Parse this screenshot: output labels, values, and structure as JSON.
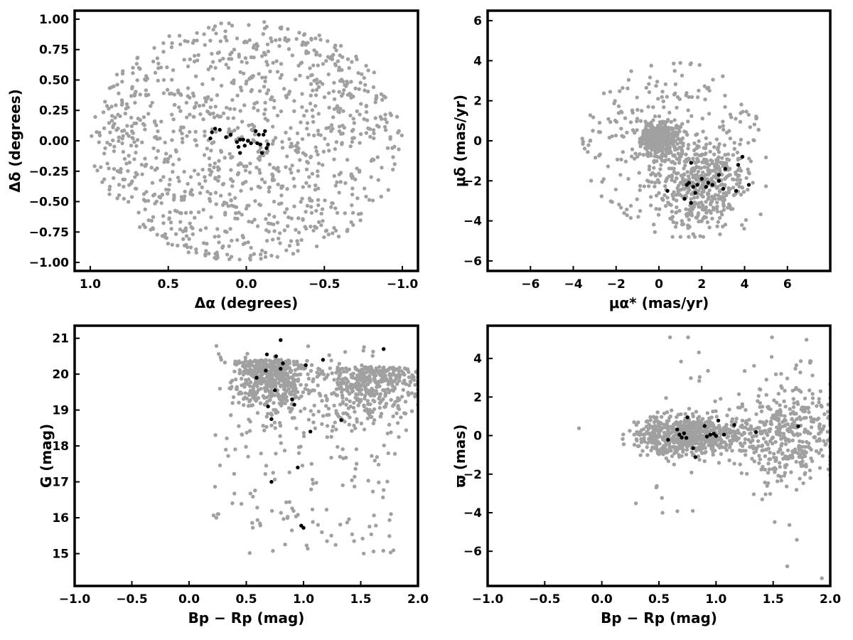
{
  "colors": {
    "field": "#a0a0a0",
    "members": "#000000"
  },
  "chart_data": [
    {
      "type": "scatter",
      "xlabel": "Δα (degrees)",
      "ylabel": "Δδ (degrees)",
      "xlim": [
        1.1,
        -1.1
      ],
      "ylim": [
        -1.07,
        1.07
      ],
      "xticks": [
        1.0,
        0.5,
        0.0,
        -0.5,
        -1.0
      ],
      "yticks": [
        -1.0,
        -0.75,
        -0.5,
        -0.25,
        0.0,
        0.25,
        0.5,
        0.75,
        1.0
      ],
      "xtick_labels": [
        "1.0",
        "0.5",
        "0.0",
        "−0.5",
        "−1.0"
      ],
      "ytick_labels": [
        "−1.00",
        "−0.75",
        "−0.50",
        "−0.25",
        "0.00",
        "0.25",
        "0.50",
        "0.75",
        "1.00"
      ],
      "series": [
        {
          "role": "field",
          "n": 1100,
          "distribution": "uniform-disk",
          "center": [
            0,
            0
          ],
          "radius": [
            1.0,
            0.99
          ]
        },
        {
          "role": "members",
          "points": [
            [
              0.23,
              0.02
            ],
            [
              0.22,
              0.07
            ],
            [
              0.2,
              0.1
            ],
            [
              0.17,
              0.09
            ],
            [
              0.13,
              0.03
            ],
            [
              0.1,
              0.05
            ],
            [
              0.06,
              -0.01
            ],
            [
              0.05,
              -0.05
            ],
            [
              0.04,
              0.01
            ],
            [
              0.02,
              0.01
            ],
            [
              0.01,
              -0.04
            ],
            [
              -0.01,
              0.0
            ],
            [
              -0.03,
              -0.02
            ],
            [
              -0.06,
              0.08
            ],
            [
              -0.08,
              0.05
            ],
            [
              -0.07,
              -0.02
            ],
            [
              -0.09,
              -0.03
            ],
            [
              -0.1,
              -0.1
            ],
            [
              -0.11,
              0.05
            ],
            [
              -0.13,
              -0.06
            ],
            [
              -0.14,
              -0.03
            ],
            [
              -0.12,
              0.08
            ],
            [
              0.04,
              -0.1
            ]
          ]
        }
      ]
    },
    {
      "type": "scatter",
      "xlabel": "μα* (mas/yr)",
      "ylabel": "μδ (mas/yr)",
      "xlim": [
        -8,
        8
      ],
      "ylim": [
        -6.5,
        6.5
      ],
      "xticks": [
        -6,
        -4,
        -2,
        0,
        2,
        4,
        6
      ],
      "yticks": [
        -6,
        -4,
        -2,
        0,
        2,
        4,
        6
      ],
      "xtick_labels": [
        "−6",
        "−4",
        "−2",
        "0",
        "2",
        "4",
        "6"
      ],
      "ytick_labels": [
        "−6",
        "−4",
        "−2",
        "0",
        "2",
        "4",
        "6"
      ],
      "series": [
        {
          "role": "field",
          "n": 1100,
          "distribution": "cluster-plus-halo",
          "center": [
            0,
            0
          ],
          "spread": [
            2.5,
            2.4
          ]
        },
        {
          "role": "members",
          "points": [
            [
              1.5,
              -1.1
            ],
            [
              1.3,
              -2.2
            ],
            [
              1.4,
              -2.1
            ],
            [
              1.6,
              -2.3
            ],
            [
              1.8,
              -2.2
            ],
            [
              2.0,
              -1.9
            ],
            [
              2.2,
              -2.3
            ],
            [
              2.3,
              -2.1
            ],
            [
              2.8,
              -1.7
            ],
            [
              2.8,
              -2.0
            ],
            [
              3.1,
              -1.4
            ],
            [
              3.0,
              -2.4
            ],
            [
              3.6,
              -2.5
            ],
            [
              3.7,
              -1.2
            ],
            [
              3.9,
              -0.8
            ],
            [
              4.2,
              -2.2
            ],
            [
              0.4,
              -2.5
            ],
            [
              1.2,
              -2.9
            ],
            [
              1.5,
              -3.1
            ],
            [
              1.7,
              -2.6
            ],
            [
              2.5,
              -2.2
            ]
          ]
        }
      ]
    },
    {
      "type": "scatter",
      "xlabel": "Bp − Rp (mag)",
      "ylabel": "G (mag)",
      "xlim": [
        -1.0,
        2.0
      ],
      "ylim": [
        14.1,
        21.35
      ],
      "xticks": [
        -1.0,
        -0.5,
        0.0,
        0.5,
        1.0,
        1.5,
        2.0
      ],
      "yticks": [
        15,
        16,
        17,
        18,
        19,
        20,
        21
      ],
      "xtick_labels": [
        "−1.0",
        "−0.5",
        "0.0",
        "0.5",
        "1.0",
        "1.5",
        "2.0"
      ],
      "ytick_labels": [
        "15",
        "16",
        "17",
        "18",
        "19",
        "20",
        "21"
      ],
      "series": [
        {
          "role": "field",
          "n": 1100,
          "distribution": "cmd-field",
          "x_range": [
            -0.2,
            2.0
          ],
          "y_range": [
            14.4,
            21.0
          ]
        },
        {
          "role": "members",
          "points": [
            [
              0.8,
              20.95
            ],
            [
              0.68,
              20.55
            ],
            [
              0.76,
              20.5
            ],
            [
              0.82,
              20.3
            ],
            [
              0.8,
              20.15
            ],
            [
              0.67,
              20.1
            ],
            [
              1.02,
              20.25
            ],
            [
              0.59,
              19.9
            ],
            [
              0.75,
              19.55
            ],
            [
              0.9,
              19.3
            ],
            [
              0.92,
              19.15
            ],
            [
              0.69,
              19.1
            ],
            [
              0.72,
              18.75
            ],
            [
              1.33,
              18.72
            ],
            [
              1.06,
              18.4
            ],
            [
              0.95,
              17.4
            ],
            [
              0.72,
              17.0
            ],
            [
              0.98,
              15.78
            ],
            [
              1.0,
              15.72
            ],
            [
              1.17,
              20.4
            ],
            [
              1.7,
              20.7
            ]
          ]
        }
      ]
    },
    {
      "type": "scatter",
      "xlabel": "Bp − Rp (mag)",
      "ylabel": "ϖ (mas)",
      "xlim": [
        -1.0,
        2.0
      ],
      "ylim": [
        -7.8,
        5.7
      ],
      "xticks": [
        -1.0,
        -0.5,
        0.0,
        0.5,
        1.0,
        1.5,
        2.0
      ],
      "yticks": [
        -6,
        -4,
        -2,
        0,
        2,
        4
      ],
      "xtick_labels": [
        "−1.0",
        "−0.5",
        "0.0",
        "0.5",
        "1.0",
        "1.5",
        "2.0"
      ],
      "ytick_labels": [
        "−6",
        "−4",
        "−2",
        "0",
        "2",
        "4"
      ],
      "series": [
        {
          "role": "field",
          "n": 1100,
          "distribution": "parallax-field",
          "x_range": [
            -0.2,
            2.0
          ],
          "y_range": [
            -7.4,
            5.1
          ]
        },
        {
          "role": "members",
          "points": [
            [
              0.58,
              -0.22
            ],
            [
              0.66,
              0.32
            ],
            [
              0.68,
              0.05
            ],
            [
              0.7,
              -0.1
            ],
            [
              0.72,
              0.12
            ],
            [
              0.74,
              -0.12
            ],
            [
              0.75,
              0.95
            ],
            [
              0.8,
              -0.65
            ],
            [
              0.82,
              -1.12
            ],
            [
              0.9,
              0.5
            ],
            [
              0.92,
              -0.05
            ],
            [
              0.95,
              0.05
            ],
            [
              0.98,
              0.1
            ],
            [
              1.0,
              -0.02
            ],
            [
              1.02,
              0.78
            ],
            [
              1.07,
              0.05
            ],
            [
              1.16,
              0.55
            ],
            [
              1.35,
              0.18
            ],
            [
              1.72,
              0.48
            ]
          ]
        }
      ]
    }
  ]
}
